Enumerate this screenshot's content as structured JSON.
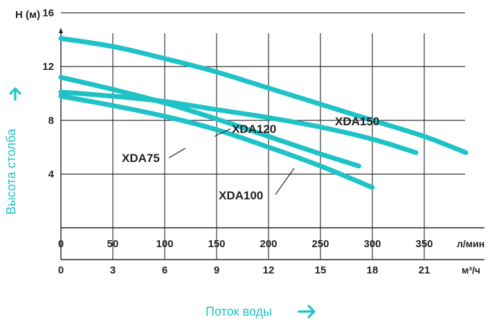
{
  "chart_data": {
    "type": "line",
    "ylabel_top": "H (м)",
    "ylabel_side": "Высота столба",
    "xlabel": "Поток воды",
    "x_unit_primary": "л/мин",
    "x_unit_secondary": "м³/ч",
    "xlim": [
      0,
      400
    ],
    "ylim": [
      0,
      16
    ],
    "x_ticks_primary": [
      "0",
      "50",
      "100",
      "150",
      "200",
      "250",
      "300",
      "350"
    ],
    "x_ticks_primary_values": [
      0,
      50,
      100,
      150,
      200,
      250,
      300,
      350
    ],
    "x_ticks_secondary": [
      "0",
      "3",
      "6",
      "9",
      "12",
      "15",
      "18",
      "21"
    ],
    "x_ticks_secondary_values": [
      0,
      50,
      100,
      150,
      200,
      250,
      300,
      350
    ],
    "y_ticks": [
      "4",
      "8",
      "12",
      "16"
    ],
    "y_ticks_values": [
      4,
      8,
      12,
      16
    ],
    "grid": true,
    "accent_color": "#1fc3c7",
    "series": [
      {
        "name": "XDA150",
        "x": [
          0,
          50,
          100,
          150,
          200,
          250,
          300,
          350,
          390
        ],
        "y": [
          14.1,
          13.5,
          12.6,
          11.6,
          10.4,
          9.2,
          8.0,
          6.8,
          5.6
        ]
      },
      {
        "name": "XDA120",
        "x": [
          0,
          50,
          100,
          150,
          200,
          250,
          300,
          342
        ],
        "y": [
          10.1,
          9.8,
          9.4,
          8.8,
          8.2,
          7.5,
          6.6,
          5.6
        ]
      },
      {
        "name": "XDA100",
        "x": [
          0,
          50,
          100,
          150,
          200,
          250,
          300
        ],
        "y": [
          9.8,
          9.1,
          8.3,
          7.3,
          6.0,
          4.6,
          3.0
        ]
      },
      {
        "name": "XDA75",
        "x": [
          0,
          50,
          100,
          150,
          200,
          250,
          287
        ],
        "y": [
          11.2,
          10.3,
          9.3,
          8.1,
          6.8,
          5.5,
          4.6
        ]
      }
    ]
  }
}
